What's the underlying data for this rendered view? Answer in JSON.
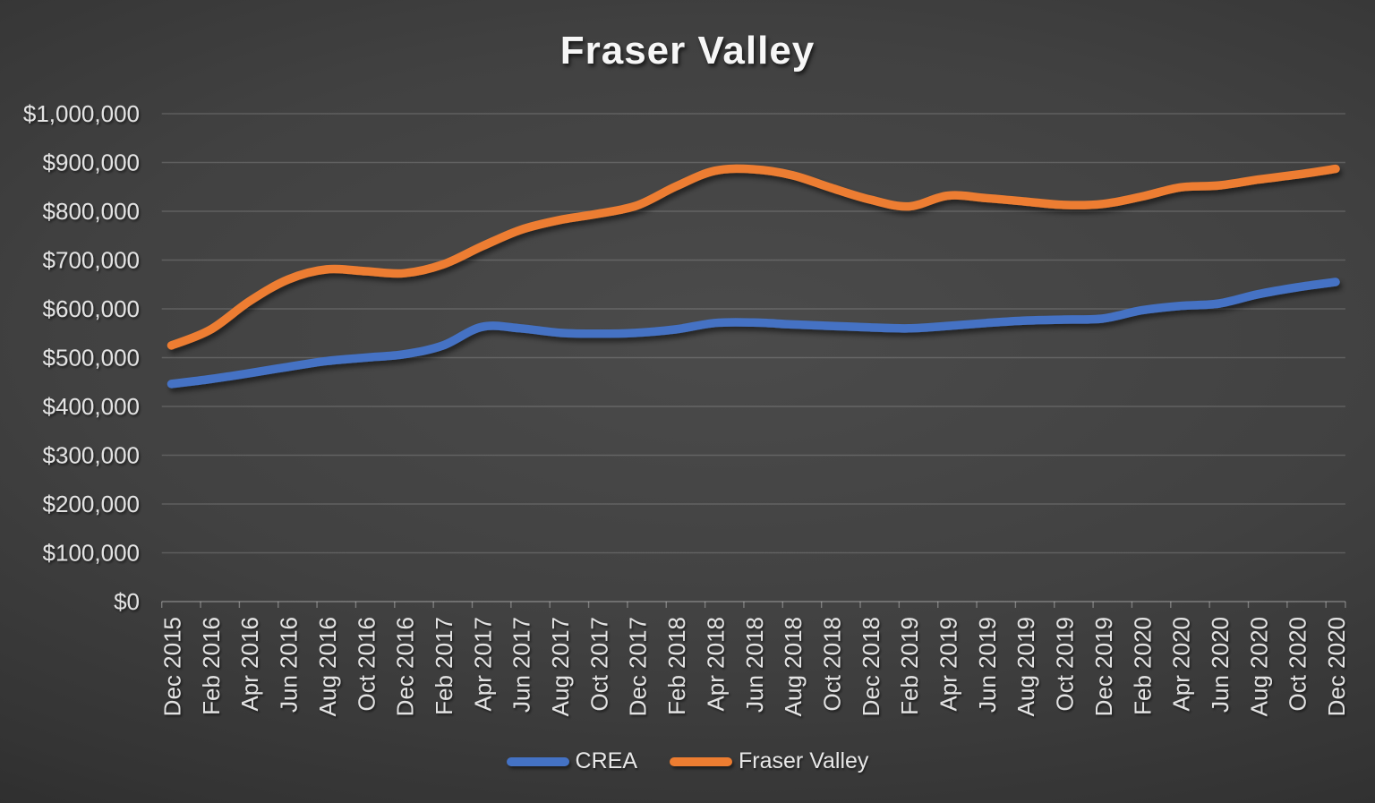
{
  "title": "Fraser Valley",
  "chart_data": {
    "type": "line",
    "title": "Fraser Valley",
    "categories": [
      "Dec 2015",
      "Feb 2016",
      "Apr 2016",
      "Jun 2016",
      "Aug 2016",
      "Oct 2016",
      "Dec 2016",
      "Feb 2017",
      "Apr 2017",
      "Jun 2017",
      "Aug 2017",
      "Oct 2017",
      "Dec 2017",
      "Feb 2018",
      "Apr 2018",
      "Jun 2018",
      "Aug 2018",
      "Oct 2018",
      "Dec 2018",
      "Feb 2019",
      "Apr 2019",
      "Jun 2019",
      "Aug 2019",
      "Oct 2019",
      "Dec 2019",
      "Feb 2020",
      "Apr 2020",
      "Jun 2020",
      "Aug 2020",
      "Oct 2020",
      "Dec 2020"
    ],
    "series": [
      {
        "name": "CREA",
        "color": "#4472C4",
        "values": [
          446000,
          456000,
          468000,
          481000,
          493000,
          500000,
          507000,
          525000,
          563000,
          560000,
          551000,
          549000,
          551000,
          558000,
          571000,
          572000,
          568000,
          565000,
          562000,
          560000,
          565000,
          571000,
          576000,
          578000,
          580000,
          597000,
          606000,
          611000,
          630000,
          644000,
          655000
        ]
      },
      {
        "name": "Fraser Valley",
        "color": "#ED7D31",
        "values": [
          525000,
          557000,
          615000,
          660000,
          681000,
          677000,
          673000,
          691000,
          728000,
          762000,
          782000,
          795000,
          812000,
          851000,
          883000,
          886000,
          874000,
          848000,
          824000,
          810000,
          832000,
          827000,
          820000,
          813000,
          815000,
          830000,
          849000,
          853000,
          865000,
          875000,
          887000
        ]
      }
    ],
    "xlabel": "",
    "ylabel": "",
    "ylim": [
      0,
      1000000
    ],
    "ytick_interval": 100000,
    "ytick_labels": [
      "$0",
      "$100,000",
      "$200,000",
      "$300,000",
      "$400,000",
      "$500,000",
      "$600,000",
      "$700,000",
      "$800,000",
      "$900,000",
      "$1,000,000"
    ],
    "grid": true,
    "smoothed_lines": true,
    "legend_position": "bottom"
  },
  "colors": {
    "background_center": "#4b4b4b",
    "background_edge": "#242424",
    "gridline": "rgba(255,255,255,0.16)",
    "axis_line": "rgba(255,255,255,0.32)",
    "axis_text": "#e3e3e3",
    "title_text": "#f7f7f7",
    "series_blue": "#4472C4",
    "series_orange": "#ED7D31"
  }
}
